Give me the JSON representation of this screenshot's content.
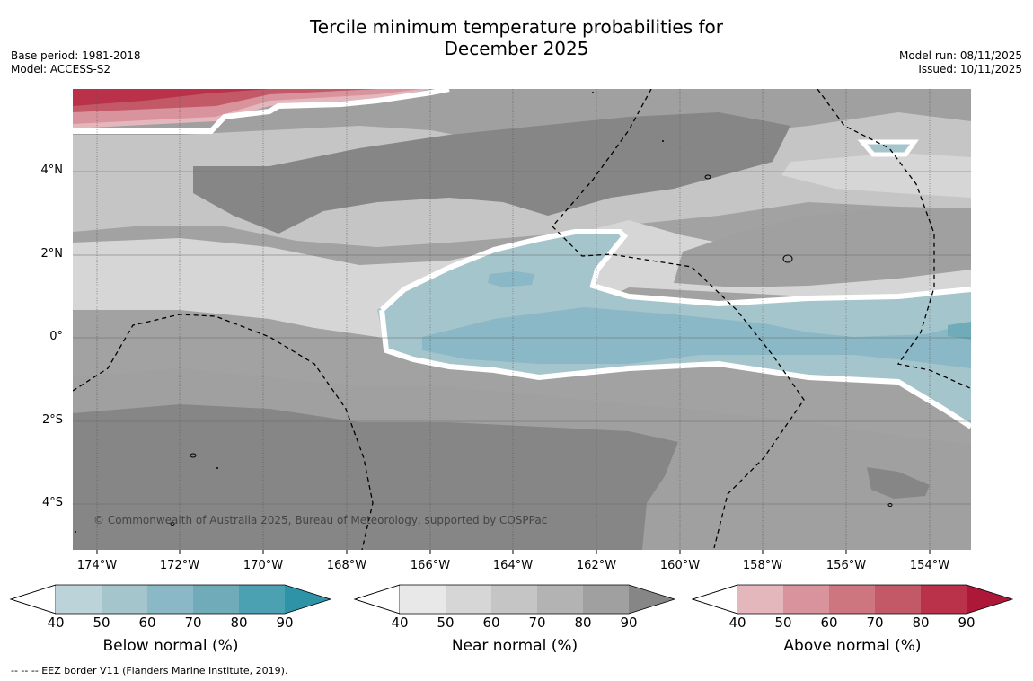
{
  "header": {
    "title_line1": "Tercile minimum temperature probabilities for",
    "title_line2": "December 2025",
    "base_period": "Base period: 1981-2018",
    "model": "Model: ACCESS-S2",
    "model_run": "Model run: 08/11/2025",
    "issued": "Issued: 10/11/2025"
  },
  "map": {
    "copyright": "© Commonwealth of Australia 2025, Bureau of Meteorology, supported by COSPPac",
    "lat_labels": [
      "4°N",
      "2°N",
      "0°",
      "2°S",
      "4°S"
    ],
    "lon_labels": [
      "174°W",
      "172°W",
      "170°W",
      "168°W",
      "166°W",
      "164°W",
      "162°W",
      "160°W",
      "158°W",
      "156°W",
      "154°W"
    ]
  },
  "legend": {
    "ticks": [
      "40",
      "50",
      "60",
      "70",
      "80",
      "90"
    ],
    "below": {
      "title": "Below normal (%)",
      "colors": [
        "#bdd3da",
        "#a5c5cc",
        "#8bb8c6",
        "#6fabb8",
        "#4ba1b2",
        "#2f93a8"
      ]
    },
    "near": {
      "title": "Near normal (%)",
      "colors": [
        "#e8e8e8",
        "#d6d6d6",
        "#c5c5c5",
        "#b3b3b3",
        "#a0a0a0",
        "#868686"
      ]
    },
    "above": {
      "title": "Above normal (%)",
      "colors": [
        "#e4b7bd",
        "#d8939c",
        "#cd7680",
        "#c35967",
        "#b9324a",
        "#ad1838"
      ]
    }
  },
  "footer": {
    "eez_note": "--  --  -- EEZ border V11 (Flanders Marine Institute, 2019)."
  }
}
